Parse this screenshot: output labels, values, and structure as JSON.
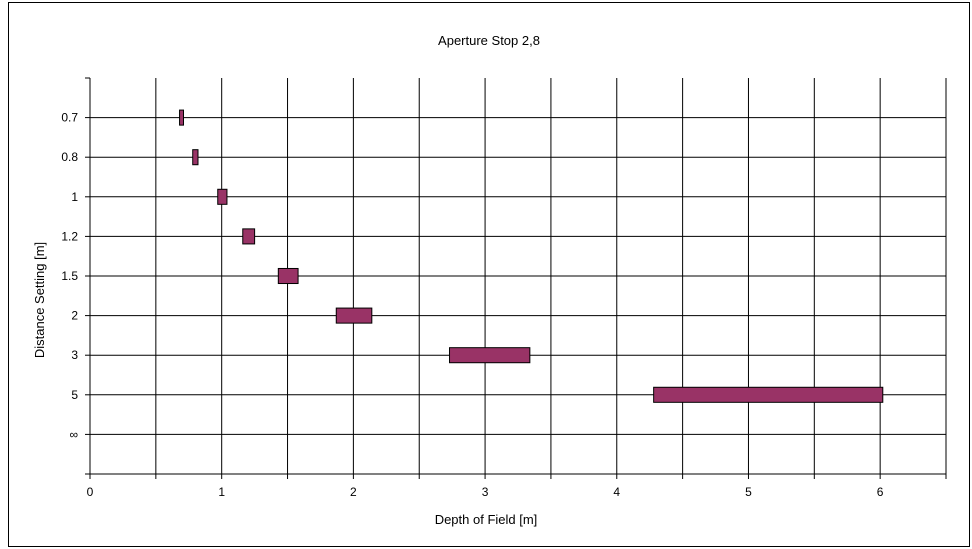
{
  "chart_data": {
    "type": "bar",
    "subtype": "floating-horizontal-range",
    "title": "Aperture Stop 2,8",
    "xlabel": "Depth of Field [m]",
    "ylabel": "Distance Setting [m]",
    "xlim": [
      0,
      6.5
    ],
    "x_ticks": [
      "0",
      "1",
      "2",
      "3",
      "4",
      "5",
      "6"
    ],
    "grid": true,
    "legend": "none",
    "bar_color": "#993366",
    "categories": [
      "0.7",
      "0.8",
      "1",
      "1.2",
      "1.5",
      "2",
      "3",
      "5",
      "∞"
    ],
    "ranges": [
      [
        0.68,
        0.71
      ],
      [
        0.78,
        0.82
      ],
      [
        0.97,
        1.04
      ],
      [
        1.16,
        1.25
      ],
      [
        1.43,
        1.58
      ],
      [
        1.87,
        2.14
      ],
      [
        2.73,
        3.34
      ],
      [
        4.28,
        6.02
      ],
      null
    ]
  }
}
